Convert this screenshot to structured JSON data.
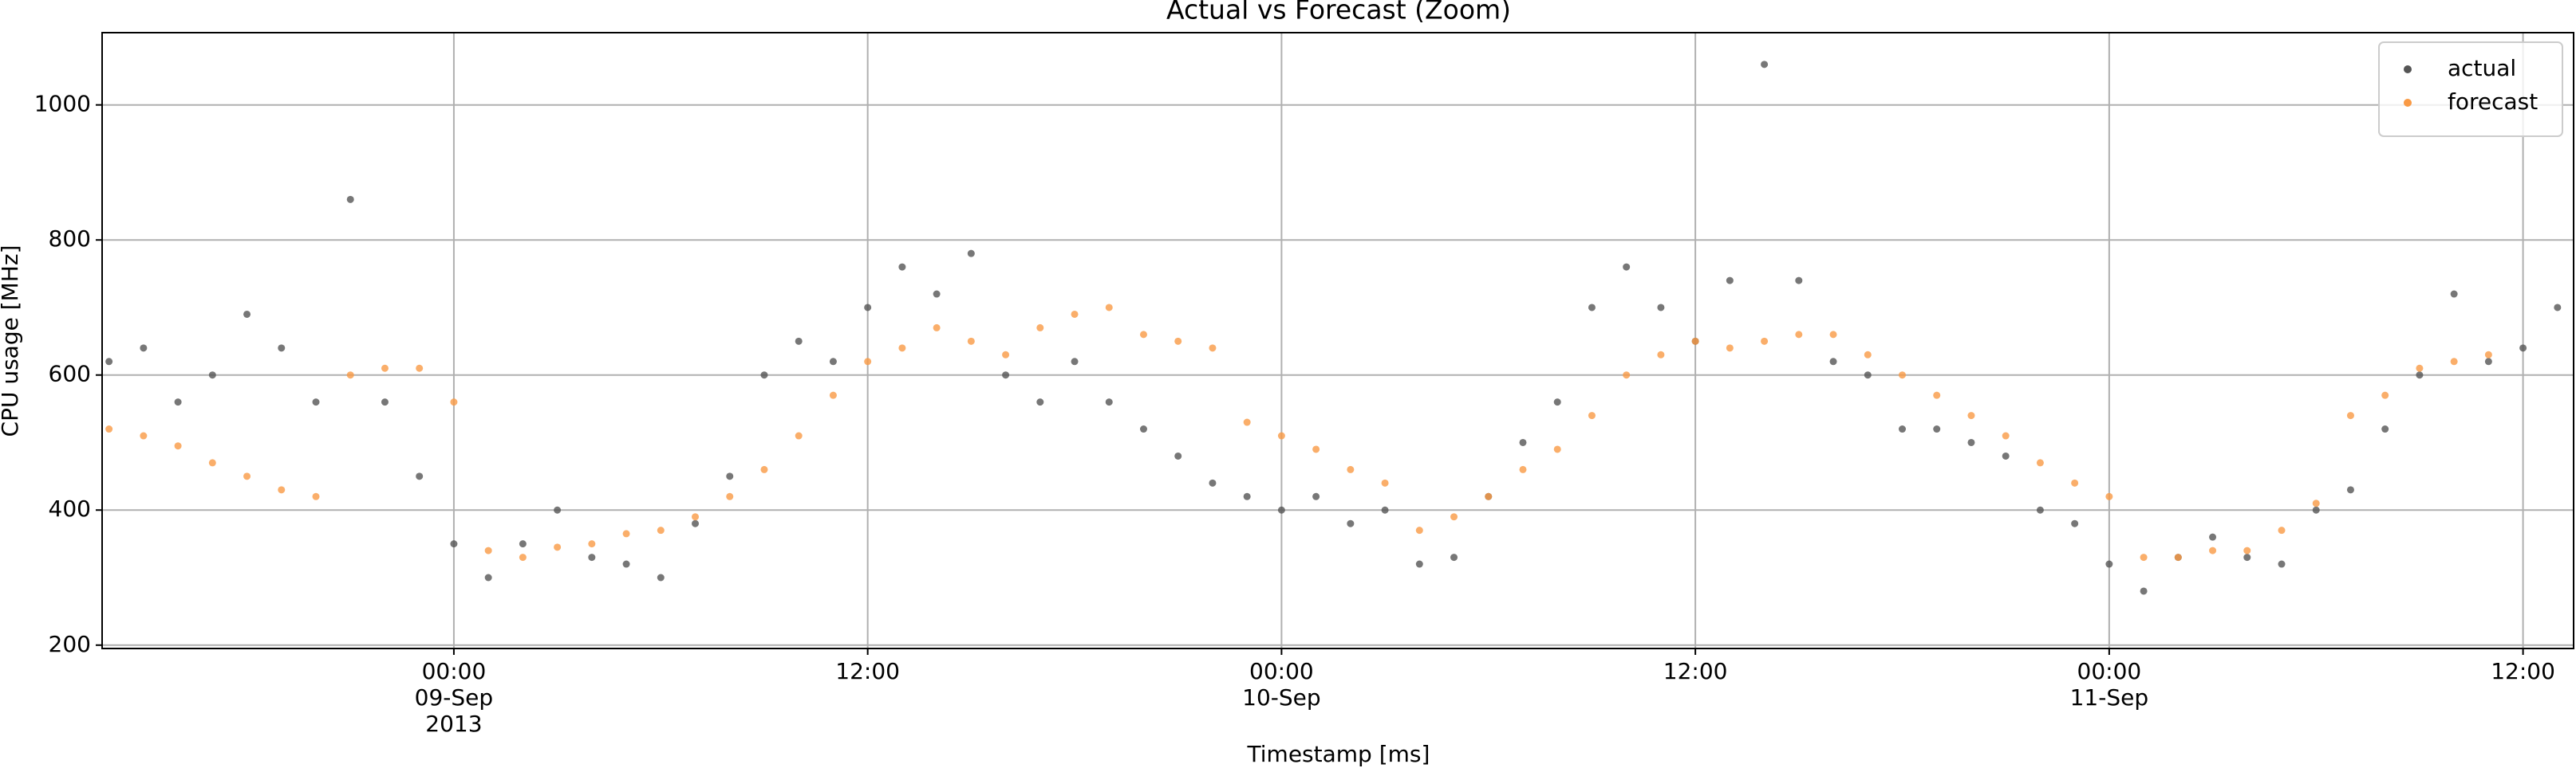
{
  "chart_data": {
    "type": "scatter",
    "title": "Actual vs Forecast (Zoom)",
    "x_label": "Timestamp [ms]",
    "y_label": "CPU usage [MHz]",
    "x": [
      "2013-09-08 14:00",
      "2013-09-08 15:00",
      "2013-09-08 16:00",
      "2013-09-08 17:00",
      "2013-09-08 18:00",
      "2013-09-08 19:00",
      "2013-09-08 20:00",
      "2013-09-08 21:00",
      "2013-09-08 22:00",
      "2013-09-08 23:00",
      "2013-09-09 00:00",
      "2013-09-09 01:00",
      "2013-09-09 02:00",
      "2013-09-09 03:00",
      "2013-09-09 04:00",
      "2013-09-09 05:00",
      "2013-09-09 06:00",
      "2013-09-09 07:00",
      "2013-09-09 08:00",
      "2013-09-09 09:00",
      "2013-09-09 10:00",
      "2013-09-09 11:00",
      "2013-09-09 12:00",
      "2013-09-09 13:00",
      "2013-09-09 14:00",
      "2013-09-09 15:00",
      "2013-09-09 16:00",
      "2013-09-09 17:00",
      "2013-09-09 18:00",
      "2013-09-09 19:00",
      "2013-09-09 20:00",
      "2013-09-09 21:00",
      "2013-09-09 22:00",
      "2013-09-09 23:00",
      "2013-09-10 00:00",
      "2013-09-10 01:00",
      "2013-09-10 02:00",
      "2013-09-10 03:00",
      "2013-09-10 04:00",
      "2013-09-10 05:00",
      "2013-09-10 06:00",
      "2013-09-10 07:00",
      "2013-09-10 08:00",
      "2013-09-10 09:00",
      "2013-09-10 10:00",
      "2013-09-10 11:00",
      "2013-09-10 12:00",
      "2013-09-10 13:00",
      "2013-09-10 14:00",
      "2013-09-10 15:00",
      "2013-09-10 16:00",
      "2013-09-10 17:00",
      "2013-09-10 18:00",
      "2013-09-10 19:00",
      "2013-09-10 20:00",
      "2013-09-10 21:00",
      "2013-09-10 22:00",
      "2013-09-10 23:00",
      "2013-09-11 00:00",
      "2013-09-11 01:00",
      "2013-09-11 02:00",
      "2013-09-11 03:00",
      "2013-09-11 04:00",
      "2013-09-11 05:00",
      "2013-09-11 06:00",
      "2013-09-11 07:00",
      "2013-09-11 08:00",
      "2013-09-11 09:00",
      "2013-09-11 10:00",
      "2013-09-11 11:00",
      "2013-09-11 12:00",
      "2013-09-11 13:00"
    ],
    "series": [
      {
        "name": "actual",
        "color": "#555555",
        "values": [
          620,
          640,
          560,
          600,
          690,
          640,
          560,
          860,
          560,
          450,
          350,
          300,
          350,
          400,
          330,
          320,
          300,
          380,
          450,
          600,
          650,
          620,
          700,
          760,
          720,
          780,
          600,
          560,
          620,
          560,
          520,
          480,
          440,
          420,
          400,
          420,
          380,
          400,
          320,
          330,
          420,
          500,
          560,
          700,
          760,
          700,
          650,
          740,
          1060,
          740,
          620,
          600,
          520,
          520,
          500,
          480,
          400,
          380,
          320,
          280,
          330,
          360,
          330,
          320,
          400,
          430,
          520,
          600,
          720,
          620,
          640,
          700
        ]
      },
      {
        "name": "forecast",
        "color": "#f99a45",
        "values": [
          520,
          510,
          495,
          470,
          450,
          430,
          420,
          600,
          610,
          610,
          560,
          340,
          330,
          345,
          350,
          365,
          370,
          390,
          420,
          460,
          510,
          570,
          620,
          640,
          670,
          650,
          630,
          670,
          690,
          700,
          660,
          650,
          640,
          530,
          510,
          490,
          460,
          440,
          370,
          390,
          420,
          460,
          490,
          540,
          600,
          630,
          650,
          640,
          650,
          660,
          660,
          630,
          600,
          570,
          540,
          510,
          470,
          440,
          420,
          330,
          330,
          340,
          340,
          370,
          410,
          540,
          570,
          610,
          620,
          630,
          null,
          null
        ]
      }
    ],
    "xlim": [
      "2013-09-08 13:48",
      "2013-09-11 13:28"
    ],
    "xticks": [
      {
        "value": "2013-09-09 00:00",
        "label": [
          "00:00",
          "09-Sep",
          "2013"
        ]
      },
      {
        "value": "2013-09-09 12:00",
        "label": [
          "12:00"
        ]
      },
      {
        "value": "2013-09-10 00:00",
        "label": [
          "00:00",
          "10-Sep"
        ]
      },
      {
        "value": "2013-09-10 12:00",
        "label": [
          "12:00"
        ]
      },
      {
        "value": "2013-09-11 00:00",
        "label": [
          "00:00",
          "11-Sep"
        ]
      },
      {
        "value": "2013-09-11 12:00",
        "label": [
          "12:00"
        ]
      }
    ],
    "ylim": [
      195,
      1107
    ],
    "yticks": [
      200,
      400,
      600,
      800,
      1000
    ],
    "grid": true,
    "legend": "upper right"
  }
}
